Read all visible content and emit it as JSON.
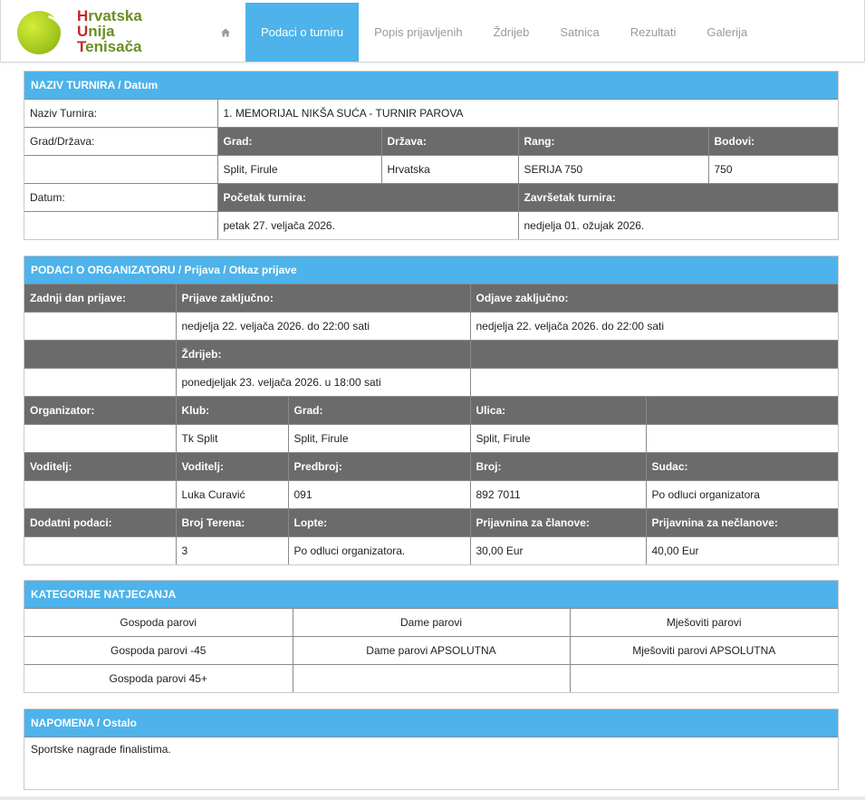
{
  "logo": {
    "l1_cap": "H",
    "l1_rest": "rvatska",
    "l2_cap": "U",
    "l2_rest": "nija",
    "l3_cap": "T",
    "l3_rest": "enisača"
  },
  "nav": {
    "home_icon": "home-icon",
    "items": [
      "Podaci o turniru",
      "Popis prijavljenih",
      "Ždrijeb",
      "Satnica",
      "Rezultati",
      "Galerija"
    ],
    "active": "Podaci o turniru"
  },
  "colors": {
    "accent": "#4db3ea",
    "header_cell": "#6b6b6b",
    "logo_red": "#c0282d",
    "logo_green": "#6b8e23"
  },
  "tournament": {
    "title": "NAZIV TURNIRA / Datum",
    "name_label": "Naziv Turnira:",
    "name_value": "1. MEMORIJAL NIKŠA SUĆA - TURNIR PAROVA",
    "location_label": "Grad/Država:",
    "city_h": "Grad:",
    "country_h": "Država:",
    "rank_h": "Rang:",
    "points_h": "Bodovi:",
    "city": "Split, Firule",
    "country": "Hrvatska",
    "rank": "SERIJA 750",
    "points": "750",
    "date_label": "Datum:",
    "start_h": "Početak turnira:",
    "end_h": "Završetak turnira:",
    "start": "petak 27. veljača 2026.",
    "end": "nedjelja 01. ožujak 2026."
  },
  "organizer": {
    "title": "PODACI O ORGANIZATORU / Prijava / Otkaz prijave",
    "last_day_h": "Zadnji dan prijave:",
    "entries_close_h": "Prijave zaključno:",
    "withdraw_close_h": "Odjave zaključno:",
    "entries_close": "nedjelja 22. veljača 2026. do 22:00 sati",
    "withdraw_close": "nedjelja 22. veljača 2026. do 22:00 sati",
    "draw_h": "Ždrijeb:",
    "draw": "ponedjeljak 23. veljača 2026. u 18:00 sati",
    "org_h": "Organizator:",
    "club_h": "Klub:",
    "org_city_h": "Grad:",
    "street_h": "Ulica:",
    "club": "Tk Split",
    "org_city": "Split, Firule",
    "street": "Split, Firule",
    "leader_h": "Voditelj:",
    "leader_name_h": "Voditelj:",
    "prefix_h": "Predbroj:",
    "number_h": "Broj:",
    "referee_h": "Sudac:",
    "leader": "Luka Curavić",
    "prefix": "091",
    "number": "892 7011",
    "referee": "Po odluci organizatora",
    "extra_h": "Dodatni podaci:",
    "courts_h": "Broj Terena:",
    "balls_h": "Lopte:",
    "fee_members_h": "Prijavnina za članove:",
    "fee_non_h": "Prijavnina za nečlanove:",
    "courts": "3",
    "balls": "Po odluci organizatora.",
    "fee_members": "30,00 Eur",
    "fee_non": "40,00 Eur"
  },
  "categories": {
    "title": "KATEGORIJE NATJECANJA",
    "rows": [
      [
        "Gospoda parovi",
        "Dame parovi",
        "Mješoviti parovi"
      ],
      [
        "Gospoda parovi -45",
        "Dame parovi APSOLUTNA",
        "Mješoviti parovi APSOLUTNA"
      ],
      [
        "Gospoda parovi 45+",
        "",
        ""
      ]
    ]
  },
  "note": {
    "title": "NAPOMENA / Ostalo",
    "text": "Sportske nagrade finalistima."
  }
}
